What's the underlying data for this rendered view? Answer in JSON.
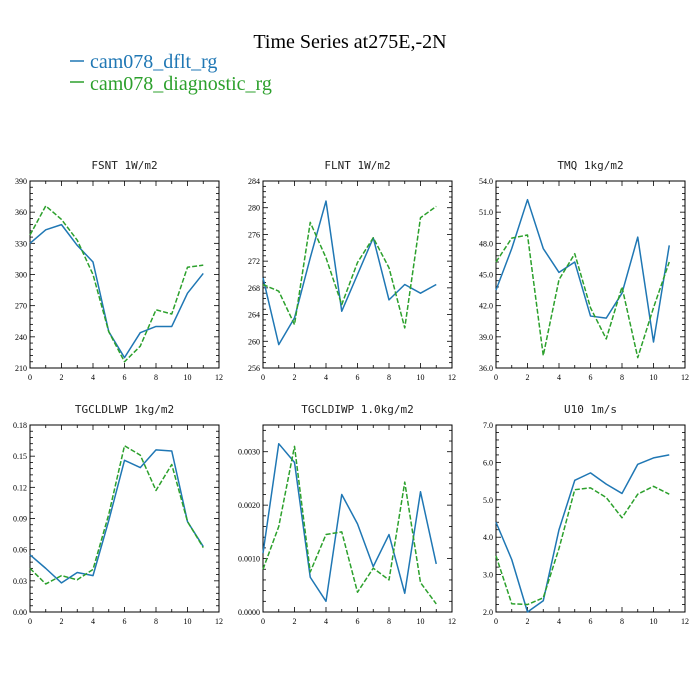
{
  "figure": {
    "title": "Time Series at275E,-2N"
  },
  "legend": [
    {
      "name": "cam078_dflt_rg",
      "color": "#1f77b4",
      "dash": "solid"
    },
    {
      "name": "cam078_diagnostic_rg",
      "color": "#2ca02c",
      "dash": "dashed"
    }
  ],
  "chart_data": [
    {
      "type": "line",
      "title": "FSNT  1W/m2",
      "x": [
        0,
        1,
        2,
        3,
        4,
        5,
        6,
        7,
        8,
        9,
        10,
        11
      ],
      "xlim": [
        0,
        12
      ],
      "xticks": [
        0,
        2,
        4,
        6,
        8,
        10,
        12
      ],
      "xtick_labels": [
        "0",
        "2",
        "4",
        "6",
        "8",
        "10",
        "12"
      ],
      "ylim": [
        210,
        390
      ],
      "yticks": [
        210,
        240,
        270,
        300,
        330,
        360,
        390
      ],
      "ytick_labels": [
        "210",
        "240",
        "270",
        "300",
        "330",
        "360",
        "390"
      ],
      "series": [
        {
          "name": "cam078_dflt_rg",
          "values": [
            330,
            343,
            348,
            328,
            312,
            245,
            220,
            244,
            250,
            250,
            282,
            301
          ]
        },
        {
          "name": "cam078_diagnostic_rg",
          "values": [
            338,
            366,
            353,
            333,
            300,
            245,
            216,
            231,
            266,
            262,
            307,
            309
          ]
        }
      ]
    },
    {
      "type": "line",
      "title": "FLNT  1W/m2",
      "x": [
        0,
        1,
        2,
        3,
        4,
        5,
        6,
        7,
        8,
        9,
        10,
        11
      ],
      "xlim": [
        0,
        12
      ],
      "xticks": [
        0,
        2,
        4,
        6,
        8,
        10,
        12
      ],
      "xtick_labels": [
        "0",
        "2",
        "4",
        "6",
        "8",
        "10",
        "12"
      ],
      "ylim": [
        256,
        284
      ],
      "yticks": [
        256,
        260,
        264,
        268,
        272,
        276,
        280,
        284
      ],
      "ytick_labels": [
        "256",
        "260",
        "264",
        "268",
        "272",
        "276",
        "280",
        "284"
      ],
      "series": [
        {
          "name": "cam078_dflt_rg",
          "values": [
            269.5,
            259.5,
            263.5,
            272.5,
            281,
            264.5,
            270,
            275.5,
            266.2,
            268.5,
            267.2,
            268.5
          ]
        },
        {
          "name": "cam078_diagnostic_rg",
          "values": [
            268.5,
            267.5,
            262.5,
            277.8,
            272.5,
            265.5,
            271.8,
            275.5,
            271,
            262,
            278.5,
            280.2
          ]
        }
      ]
    },
    {
      "type": "line",
      "title": "TMQ  1kg/m2",
      "x": [
        0,
        1,
        2,
        3,
        4,
        5,
        6,
        7,
        8,
        9,
        10,
        11
      ],
      "xlim": [
        0,
        12
      ],
      "xticks": [
        0,
        2,
        4,
        6,
        8,
        10,
        12
      ],
      "xtick_labels": [
        "0",
        "2",
        "4",
        "6",
        "8",
        "10",
        "12"
      ],
      "ylim": [
        36.0,
        54.0
      ],
      "yticks": [
        36,
        39,
        42,
        45,
        48,
        51,
        54
      ],
      "ytick_labels": [
        "36.0",
        "39.0",
        "42.0",
        "45.0",
        "48.0",
        "51.0",
        "54.0"
      ],
      "series": [
        {
          "name": "cam078_dflt_rg",
          "values": [
            43.5,
            47.5,
            52.2,
            47.5,
            45.2,
            46.2,
            41.0,
            40.8,
            43.2,
            48.6,
            38.5,
            47.8
          ]
        },
        {
          "name": "cam078_diagnostic_rg",
          "values": [
            46.2,
            48.5,
            48.8,
            37.2,
            44.5,
            47.0,
            41.8,
            38.8,
            43.8,
            37.0,
            41.8,
            46.2
          ]
        }
      ]
    },
    {
      "type": "line",
      "title": "TGCLDLWP  1kg/m2",
      "x": [
        0,
        1,
        2,
        3,
        4,
        5,
        6,
        7,
        8,
        9,
        10,
        11
      ],
      "xlim": [
        0,
        12
      ],
      "xticks": [
        0,
        2,
        4,
        6,
        8,
        10,
        12
      ],
      "xtick_labels": [
        "0",
        "2",
        "4",
        "6",
        "8",
        "10",
        "12"
      ],
      "ylim": [
        0.0,
        0.18
      ],
      "yticks": [
        0,
        0.03,
        0.06,
        0.09,
        0.12,
        0.15,
        0.18
      ],
      "ytick_labels": [
        "0.00",
        "0.03",
        "0.06",
        "0.09",
        "0.12",
        "0.15",
        "0.18"
      ],
      "series": [
        {
          "name": "cam078_dflt_rg",
          "values": [
            0.055,
            0.042,
            0.028,
            0.038,
            0.035,
            0.088,
            0.146,
            0.139,
            0.156,
            0.155,
            0.087,
            0.063
          ]
        },
        {
          "name": "cam078_diagnostic_rg",
          "values": [
            0.042,
            0.027,
            0.035,
            0.031,
            0.041,
            0.094,
            0.16,
            0.151,
            0.117,
            0.142,
            0.087,
            0.062
          ]
        }
      ]
    },
    {
      "type": "line",
      "title": "TGCLDIWP  1.0kg/m2",
      "x": [
        0,
        1,
        2,
        3,
        4,
        5,
        6,
        7,
        8,
        9,
        10,
        11
      ],
      "xlim": [
        0,
        12
      ],
      "xticks": [
        0,
        2,
        4,
        6,
        8,
        10,
        12
      ],
      "xtick_labels": [
        "0",
        "2",
        "4",
        "6",
        "8",
        "10",
        "12"
      ],
      "ylim": [
        0.0,
        0.0035
      ],
      "yticks": [
        0,
        0.001,
        0.002,
        0.003
      ],
      "ytick_labels": [
        "0.0000",
        "0.0010",
        "0.0020",
        "0.0030"
      ],
      "series": [
        {
          "name": "cam078_dflt_rg",
          "values": [
            0.0011,
            0.00315,
            0.0028,
            0.00065,
            0.0002,
            0.0022,
            0.00165,
            0.00085,
            0.00145,
            0.00035,
            0.00225,
            0.0009
          ]
        },
        {
          "name": "cam078_diagnostic_rg",
          "values": [
            0.0008,
            0.0016,
            0.0031,
            0.00075,
            0.00145,
            0.0015,
            0.00037,
            0.00082,
            0.0006,
            0.00243,
            0.00055,
            0.00015
          ]
        }
      ]
    },
    {
      "type": "line",
      "title": "U10  1m/s",
      "x": [
        0,
        1,
        2,
        3,
        4,
        5,
        6,
        7,
        8,
        9,
        10,
        11
      ],
      "xlim": [
        0,
        12
      ],
      "xticks": [
        0,
        2,
        4,
        6,
        8,
        10,
        12
      ],
      "xtick_labels": [
        "0",
        "2",
        "4",
        "6",
        "8",
        "10",
        "12"
      ],
      "ylim": [
        2.0,
        7.0
      ],
      "yticks": [
        2,
        3,
        4,
        5,
        6,
        7
      ],
      "ytick_labels": [
        "2.0",
        "3.0",
        "4.0",
        "5.0",
        "6.0",
        "7.0"
      ],
      "series": [
        {
          "name": "cam078_dflt_rg",
          "values": [
            4.4,
            3.4,
            2.0,
            2.3,
            4.2,
            5.52,
            5.72,
            5.42,
            5.17,
            5.95,
            6.12,
            6.2
          ]
        },
        {
          "name": "cam078_diagnostic_rg",
          "values": [
            3.5,
            2.22,
            2.2,
            2.38,
            3.7,
            5.27,
            5.32,
            5.06,
            4.52,
            5.15,
            5.36,
            5.15
          ]
        }
      ]
    }
  ]
}
